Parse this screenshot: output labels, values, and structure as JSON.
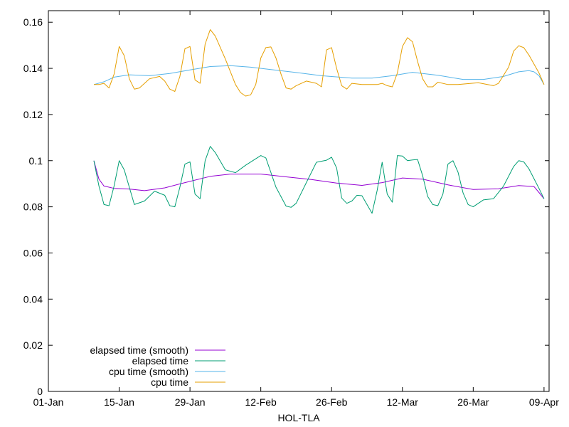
{
  "chart_data": {
    "type": "line",
    "title": "",
    "xlabel": "HOL-TLA",
    "ylabel": "",
    "xlim": [
      "2000-01-01",
      "2000-04-09"
    ],
    "ylim": [
      0,
      0.165
    ],
    "x_ticks": [
      "01-Jan",
      "15-Jan",
      "29-Jan",
      "12-Feb",
      "26-Feb",
      "12-Mar",
      "26-Mar",
      "09-Apr"
    ],
    "y_ticks": [
      "0",
      "0.02",
      "0.04",
      "0.06",
      "0.08",
      "0.1",
      "0.12",
      "0.14",
      "0.16"
    ],
    "y_tick_values": [
      0,
      0.02,
      0.04,
      0.06,
      0.08,
      0.1,
      0.12,
      0.14,
      0.16
    ],
    "grid": false,
    "legend_position": "bottom-left",
    "series": [
      {
        "name": "elapsed time (smooth)",
        "color": "#9400d3",
        "points": [
          [
            "2000-01-10",
            0.1
          ],
          [
            "2000-01-11",
            0.092
          ],
          [
            "2000-01-12",
            0.089
          ],
          [
            "2000-01-14",
            0.088
          ],
          [
            "2000-01-17",
            0.0877
          ],
          [
            "2000-01-20",
            0.087
          ],
          [
            "2000-01-24",
            0.0882
          ],
          [
            "2000-01-28",
            0.0905
          ],
          [
            "2000-02-02",
            0.0932
          ],
          [
            "2000-02-06",
            0.0942
          ],
          [
            "2000-02-12",
            0.0942
          ],
          [
            "2000-02-17",
            0.093
          ],
          [
            "2000-02-22",
            0.0918
          ],
          [
            "2000-02-27",
            0.0903
          ],
          [
            "2000-03-03",
            0.0893
          ],
          [
            "2000-03-07",
            0.0905
          ],
          [
            "2000-03-11",
            0.0925
          ],
          [
            "2000-03-15",
            0.092
          ],
          [
            "2000-03-20",
            0.0895
          ],
          [
            "2000-03-25",
            0.0875
          ],
          [
            "2000-03-30",
            0.0878
          ],
          [
            "2000-04-03",
            0.0892
          ],
          [
            "2000-04-06",
            0.0888
          ],
          [
            "2000-04-07",
            0.0862
          ],
          [
            "2000-04-08",
            0.0835
          ]
        ]
      },
      {
        "name": "elapsed time",
        "color": "#009e73",
        "points": [
          [
            "2000-01-10",
            0.1
          ],
          [
            "2000-01-11",
            0.089
          ],
          [
            "2000-01-12",
            0.081
          ],
          [
            "2000-01-13",
            0.0805
          ],
          [
            "2000-01-14",
            0.089
          ],
          [
            "2000-01-15",
            0.1
          ],
          [
            "2000-01-16",
            0.096
          ],
          [
            "2000-01-18",
            0.081
          ],
          [
            "2000-01-20",
            0.0825
          ],
          [
            "2000-01-22",
            0.0868
          ],
          [
            "2000-01-24",
            0.085
          ],
          [
            "2000-01-25",
            0.0805
          ],
          [
            "2000-01-26",
            0.08
          ],
          [
            "2000-01-27",
            0.0885
          ],
          [
            "2000-01-28",
            0.0985
          ],
          [
            "2000-01-29",
            0.0995
          ],
          [
            "2000-01-30",
            0.0855
          ],
          [
            "2000-01-31",
            0.0835
          ],
          [
            "2000-02-01",
            0.1
          ],
          [
            "2000-02-02",
            0.1062
          ],
          [
            "2000-02-03",
            0.1035
          ],
          [
            "2000-02-05",
            0.096
          ],
          [
            "2000-02-07",
            0.0948
          ],
          [
            "2000-02-09",
            0.098
          ],
          [
            "2000-02-12",
            0.1022
          ],
          [
            "2000-02-13",
            0.1012
          ],
          [
            "2000-02-15",
            0.0885
          ],
          [
            "2000-02-17",
            0.0803
          ],
          [
            "2000-02-18",
            0.0798
          ],
          [
            "2000-02-19",
            0.0815
          ],
          [
            "2000-02-21",
            0.0905
          ],
          [
            "2000-02-23",
            0.0993
          ],
          [
            "2000-02-25",
            0.1002
          ],
          [
            "2000-02-26",
            0.1015
          ],
          [
            "2000-02-27",
            0.0968
          ],
          [
            "2000-02-28",
            0.0838
          ],
          [
            "2000-02-29",
            0.0815
          ],
          [
            "2000-03-01",
            0.0825
          ],
          [
            "2000-03-02",
            0.085
          ],
          [
            "2000-03-03",
            0.0848
          ],
          [
            "2000-03-05",
            0.0772
          ],
          [
            "2000-03-06",
            0.087
          ],
          [
            "2000-03-07",
            0.0993
          ],
          [
            "2000-03-08",
            0.0855
          ],
          [
            "2000-03-09",
            0.082
          ],
          [
            "2000-03-10",
            0.1022
          ],
          [
            "2000-03-11",
            0.102
          ],
          [
            "2000-03-12",
            0.1
          ],
          [
            "2000-03-13",
            0.1003
          ],
          [
            "2000-03-14",
            0.1005
          ],
          [
            "2000-03-15",
            0.0935
          ],
          [
            "2000-03-16",
            0.0845
          ],
          [
            "2000-03-17",
            0.081
          ],
          [
            "2000-03-18",
            0.0805
          ],
          [
            "2000-03-19",
            0.0855
          ],
          [
            "2000-03-20",
            0.0985
          ],
          [
            "2000-03-21",
            0.1
          ],
          [
            "2000-03-22",
            0.095
          ],
          [
            "2000-03-23",
            0.086
          ],
          [
            "2000-03-24",
            0.081
          ],
          [
            "2000-03-25",
            0.08
          ],
          [
            "2000-03-27",
            0.083
          ],
          [
            "2000-03-29",
            0.0835
          ],
          [
            "2000-03-31",
            0.089
          ],
          [
            "2000-04-02",
            0.0975
          ],
          [
            "2000-04-03",
            0.1
          ],
          [
            "2000-04-04",
            0.0995
          ],
          [
            "2000-04-05",
            0.0965
          ],
          [
            "2000-04-07",
            0.088
          ],
          [
            "2000-04-08",
            0.0835
          ]
        ]
      },
      {
        "name": "cpu time (smooth)",
        "color": "#56b4e9",
        "points": [
          [
            "2000-01-10",
            0.133
          ],
          [
            "2000-01-12",
            0.1342
          ],
          [
            "2000-01-14",
            0.1362
          ],
          [
            "2000-01-17",
            0.1372
          ],
          [
            "2000-01-21",
            0.1368
          ],
          [
            "2000-01-25",
            0.1378
          ],
          [
            "2000-01-29",
            0.1393
          ],
          [
            "2000-02-02",
            0.1408
          ],
          [
            "2000-02-06",
            0.1412
          ],
          [
            "2000-02-10",
            0.1405
          ],
          [
            "2000-02-14",
            0.1395
          ],
          [
            "2000-02-19",
            0.1382
          ],
          [
            "2000-02-24",
            0.1368
          ],
          [
            "2000-03-01",
            0.1358
          ],
          [
            "2000-03-05",
            0.1358
          ],
          [
            "2000-03-09",
            0.1368
          ],
          [
            "2000-03-13",
            0.1383
          ],
          [
            "2000-03-18",
            0.137
          ],
          [
            "2000-03-23",
            0.1352
          ],
          [
            "2000-03-27",
            0.1352
          ],
          [
            "2000-03-31",
            0.1365
          ],
          [
            "2000-04-03",
            0.1385
          ],
          [
            "2000-04-05",
            0.139
          ],
          [
            "2000-04-06",
            0.1385
          ],
          [
            "2000-04-07",
            0.1368
          ],
          [
            "2000-04-08",
            0.133
          ]
        ]
      },
      {
        "name": "cpu time",
        "color": "#e69f00",
        "points": [
          [
            "2000-01-10",
            0.133
          ],
          [
            "2000-01-11",
            0.133
          ],
          [
            "2000-01-12",
            0.1335
          ],
          [
            "2000-01-13",
            0.1315
          ],
          [
            "2000-01-14",
            0.1375
          ],
          [
            "2000-01-15",
            0.1495
          ],
          [
            "2000-01-16",
            0.1455
          ],
          [
            "2000-01-17",
            0.1355
          ],
          [
            "2000-01-18",
            0.131
          ],
          [
            "2000-01-19",
            0.1315
          ],
          [
            "2000-01-21",
            0.1355
          ],
          [
            "2000-01-23",
            0.1365
          ],
          [
            "2000-01-24",
            0.1345
          ],
          [
            "2000-01-25",
            0.131
          ],
          [
            "2000-01-26",
            0.13
          ],
          [
            "2000-01-27",
            0.1365
          ],
          [
            "2000-01-28",
            0.1485
          ],
          [
            "2000-01-29",
            0.1495
          ],
          [
            "2000-01-30",
            0.135
          ],
          [
            "2000-01-31",
            0.1335
          ],
          [
            "2000-02-01",
            0.1505
          ],
          [
            "2000-02-02",
            0.1568
          ],
          [
            "2000-02-03",
            0.154
          ],
          [
            "2000-02-05",
            0.144
          ],
          [
            "2000-02-07",
            0.133
          ],
          [
            "2000-02-08",
            0.1295
          ],
          [
            "2000-02-09",
            0.128
          ],
          [
            "2000-02-10",
            0.1285
          ],
          [
            "2000-02-11",
            0.133
          ],
          [
            "2000-02-12",
            0.1445
          ],
          [
            "2000-02-13",
            0.149
          ],
          [
            "2000-02-14",
            0.1493
          ],
          [
            "2000-02-15",
            0.1445
          ],
          [
            "2000-02-16",
            0.1375
          ],
          [
            "2000-02-17",
            0.1315
          ],
          [
            "2000-02-18",
            0.131
          ],
          [
            "2000-02-19",
            0.1325
          ],
          [
            "2000-02-21",
            0.1345
          ],
          [
            "2000-02-23",
            0.1335
          ],
          [
            "2000-02-24",
            0.132
          ],
          [
            "2000-02-25",
            0.148
          ],
          [
            "2000-02-26",
            0.149
          ],
          [
            "2000-02-27",
            0.14
          ],
          [
            "2000-02-28",
            0.1325
          ],
          [
            "2000-02-29",
            0.131
          ],
          [
            "2000-03-01",
            0.1335
          ],
          [
            "2000-03-03",
            0.133
          ],
          [
            "2000-03-06",
            0.133
          ],
          [
            "2000-03-07",
            0.1335
          ],
          [
            "2000-03-08",
            0.1325
          ],
          [
            "2000-03-09",
            0.132
          ],
          [
            "2000-03-10",
            0.138
          ],
          [
            "2000-03-11",
            0.1495
          ],
          [
            "2000-03-12",
            0.1533
          ],
          [
            "2000-03-13",
            0.1515
          ],
          [
            "2000-03-14",
            0.143
          ],
          [
            "2000-03-15",
            0.1355
          ],
          [
            "2000-03-16",
            0.132
          ],
          [
            "2000-03-17",
            0.132
          ],
          [
            "2000-03-18",
            0.134
          ],
          [
            "2000-03-20",
            0.133
          ],
          [
            "2000-03-22",
            0.133
          ],
          [
            "2000-03-26",
            0.1338
          ],
          [
            "2000-03-29",
            0.1325
          ],
          [
            "2000-03-30",
            0.1335
          ],
          [
            "2000-04-01",
            0.1405
          ],
          [
            "2000-04-02",
            0.1475
          ],
          [
            "2000-04-03",
            0.1498
          ],
          [
            "2000-04-04",
            0.149
          ],
          [
            "2000-04-05",
            0.1458
          ],
          [
            "2000-04-07",
            0.138
          ],
          [
            "2000-04-08",
            0.133
          ]
        ]
      }
    ]
  }
}
